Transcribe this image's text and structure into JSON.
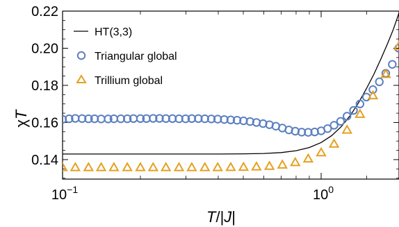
{
  "chart_data": {
    "type": "scatter",
    "xscale": "log",
    "xlim": [
      0.1,
      2.0
    ],
    "ylim": [
      0.1295,
      0.22
    ],
    "x_ticks": [
      {
        "value": 0.1,
        "base": "10",
        "exp": "−1"
      },
      {
        "value": 1.0,
        "base": "10",
        "exp": "0"
      }
    ],
    "y_ticks": [
      0.14,
      0.16,
      0.18,
      0.2,
      0.22
    ],
    "y_tick_labels": [
      "0.14",
      "0.16",
      "0.18",
      "0.20",
      "0.22"
    ],
    "xlabel": {
      "T": "T",
      "slash": "/|",
      "J": "J",
      "bar": "|"
    },
    "ylabel": {
      "chi": "χ",
      "T": "T"
    },
    "legend_position": "top-left",
    "colors": {
      "line": "#000000",
      "triangular": "#5b7fc0",
      "trillium": "#e5a020"
    },
    "series": [
      {
        "name": "HT(3,3)",
        "marker": "line",
        "x": [
          0.1,
          0.2,
          0.3,
          0.4,
          0.5,
          0.6,
          0.7,
          0.8,
          0.9,
          1.0,
          1.1,
          1.2,
          1.3,
          1.4,
          1.5,
          1.6,
          1.7,
          1.8,
          1.9,
          2.0
        ],
        "y": [
          0.143,
          0.143,
          0.143,
          0.143,
          0.1431,
          0.1433,
          0.1438,
          0.1448,
          0.1465,
          0.1492,
          0.153,
          0.158,
          0.164,
          0.171,
          0.1785,
          0.186,
          0.194,
          0.202,
          0.21,
          0.219
        ]
      },
      {
        "name": "Triangular global",
        "marker": "circle",
        "x": [
          0.1,
          0.106,
          0.112,
          0.119,
          0.126,
          0.133,
          0.141,
          0.15,
          0.158,
          0.168,
          0.178,
          0.188,
          0.2,
          0.211,
          0.224,
          0.237,
          0.251,
          0.266,
          0.282,
          0.299,
          0.316,
          0.335,
          0.355,
          0.376,
          0.398,
          0.422,
          0.447,
          0.473,
          0.501,
          0.531,
          0.562,
          0.596,
          0.631,
          0.668,
          0.708,
          0.75,
          0.794,
          0.841,
          0.891,
          0.944,
          1.0,
          1.059,
          1.122,
          1.189,
          1.259,
          1.334,
          1.413,
          1.496,
          1.585,
          1.679,
          1.778,
          1.884,
          1.995
        ],
        "y": [
          0.1617,
          0.162,
          0.1622,
          0.1621,
          0.162,
          0.162,
          0.1619,
          0.1619,
          0.162,
          0.162,
          0.162,
          0.1621,
          0.1621,
          0.1621,
          0.1622,
          0.1622,
          0.1621,
          0.1621,
          0.162,
          0.162,
          0.1621,
          0.1621,
          0.162,
          0.1619,
          0.1618,
          0.1616,
          0.1614,
          0.1612,
          0.1609,
          0.1605,
          0.16,
          0.1594,
          0.1588,
          0.158,
          0.157,
          0.156,
          0.1553,
          0.1548,
          0.1547,
          0.1549,
          0.1555,
          0.1567,
          0.1585,
          0.1606,
          0.1634,
          0.1665,
          0.17,
          0.1737,
          0.1777,
          0.1819,
          0.1865,
          0.1913,
          0.2
        ]
      },
      {
        "name": "Trillium global",
        "marker": "triangle",
        "x": [
          0.1,
          0.112,
          0.126,
          0.141,
          0.158,
          0.178,
          0.2,
          0.224,
          0.251,
          0.282,
          0.316,
          0.355,
          0.398,
          0.447,
          0.501,
          0.562,
          0.631,
          0.708,
          0.794,
          0.891,
          1.0,
          1.122,
          1.259,
          1.413,
          1.585,
          1.778,
          1.995
        ],
        "y": [
          0.1358,
          0.1358,
          0.1358,
          0.1358,
          0.1358,
          0.1358,
          0.1358,
          0.1358,
          0.1358,
          0.1358,
          0.1358,
          0.1358,
          0.1358,
          0.1359,
          0.136,
          0.1362,
          0.1365,
          0.1372,
          0.1385,
          0.1405,
          0.1438,
          0.1485,
          0.156,
          0.1645,
          0.1745,
          0.186,
          0.201
        ]
      }
    ]
  }
}
